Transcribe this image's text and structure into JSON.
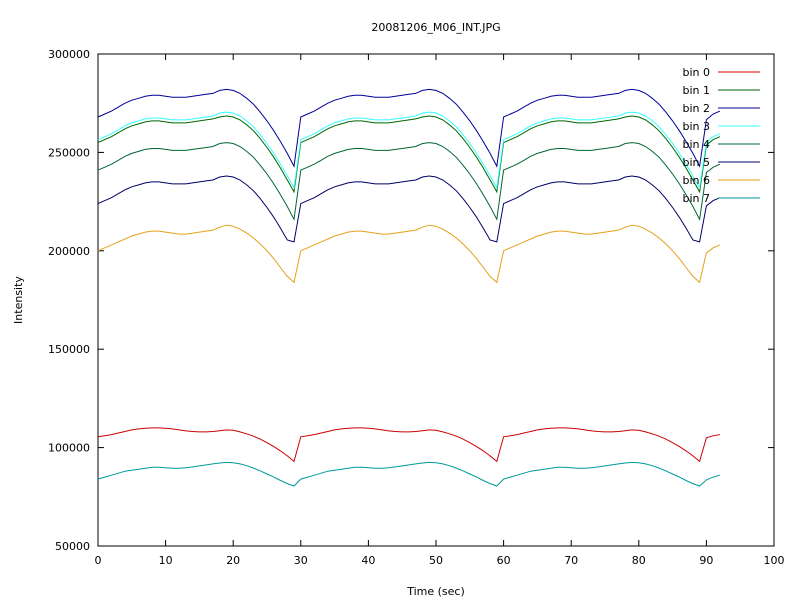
{
  "chart_data": {
    "type": "line",
    "title": "20081206_M06_INT.JPG",
    "xlabel": "Time (sec)",
    "ylabel": "Intensity",
    "xlim": [
      0,
      100
    ],
    "ylim": [
      50000,
      300000
    ],
    "xticks": [
      0,
      10,
      20,
      30,
      40,
      50,
      60,
      70,
      80,
      90,
      100
    ],
    "yticks": [
      50000,
      100000,
      150000,
      200000,
      250000,
      300000
    ],
    "legend_position": "top-right",
    "grid": false,
    "series": [
      {
        "name": "bin 0",
        "color": "#cc0000",
        "cycle": [
          105500,
          106000,
          106600,
          107400,
          108200,
          109000,
          109500,
          109800,
          110000,
          110000,
          109800,
          109500,
          109000,
          108500,
          108200,
          108000,
          108000,
          108200,
          108600,
          109000,
          108800,
          108000,
          107000,
          105800,
          104300,
          102500,
          100500,
          98300,
          95800,
          93000
        ]
      },
      {
        "name": "bin 1",
        "color": "#006600",
        "cycle": [
          255000,
          256500,
          258000,
          260000,
          262000,
          263500,
          264500,
          265500,
          266000,
          266000,
          265500,
          265000,
          265000,
          265000,
          265500,
          266000,
          266500,
          267000,
          268000,
          268500,
          268000,
          266500,
          264000,
          261000,
          257000,
          252500,
          247500,
          242000,
          236000,
          230000
        ]
      },
      {
        "name": "bin 2",
        "color": "#000099",
        "cycle": [
          268000,
          269500,
          271000,
          273000,
          275000,
          276500,
          277500,
          278500,
          279000,
          279000,
          278500,
          278000,
          278000,
          278000,
          278500,
          279000,
          279500,
          280000,
          281500,
          282000,
          281500,
          280000,
          277500,
          274500,
          270500,
          266000,
          261000,
          255500,
          249500,
          243000
        ]
      },
      {
        "name": "bin 3",
        "color": "#33ffff",
        "cycle": [
          256500,
          258000,
          259500,
          261500,
          263500,
          265000,
          266000,
          267000,
          267500,
          267500,
          267000,
          266500,
          266500,
          266500,
          267000,
          267500,
          268000,
          268500,
          270000,
          270500,
          270000,
          268500,
          266000,
          263000,
          259000,
          254500,
          249500,
          244000,
          238000,
          232000
        ]
      },
      {
        "name": "bin 4",
        "color": "#006633",
        "cycle": [
          241000,
          242500,
          244000,
          246000,
          248000,
          249500,
          250500,
          251500,
          252000,
          252000,
          251500,
          251000,
          251000,
          251000,
          251500,
          252000,
          252500,
          253000,
          254500,
          255000,
          254500,
          253000,
          250500,
          247500,
          243500,
          239000,
          234000,
          228500,
          222500,
          216000
        ]
      },
      {
        "name": "bin 5",
        "color": "#000066",
        "cycle": [
          224000,
          225500,
          227000,
          229000,
          231000,
          232500,
          233500,
          234500,
          235000,
          235000,
          234500,
          234000,
          234000,
          234000,
          234500,
          235000,
          235500,
          236000,
          237500,
          238000,
          237500,
          236000,
          233500,
          230500,
          226500,
          222000,
          217000,
          211500,
          205500,
          204500
        ]
      },
      {
        "name": "bin 6",
        "color": "#e6a01a",
        "cycle": [
          200000,
          201500,
          203000,
          204500,
          206000,
          207500,
          208500,
          209500,
          210000,
          210000,
          209500,
          209000,
          208500,
          208500,
          209000,
          209500,
          210000,
          210500,
          212000,
          213000,
          212500,
          211000,
          209000,
          206500,
          203500,
          200000,
          196000,
          191500,
          187000,
          184000
        ]
      },
      {
        "name": "bin 7",
        "color": "#009999",
        "cycle": [
          84000,
          85000,
          86000,
          87000,
          88000,
          88500,
          89000,
          89500,
          90000,
          90000,
          89800,
          89500,
          89500,
          89800,
          90200,
          90700,
          91200,
          91700,
          92200,
          92500,
          92300,
          91700,
          90800,
          89600,
          88200,
          86600,
          85000,
          83300,
          81700,
          80500
        ]
      }
    ]
  }
}
